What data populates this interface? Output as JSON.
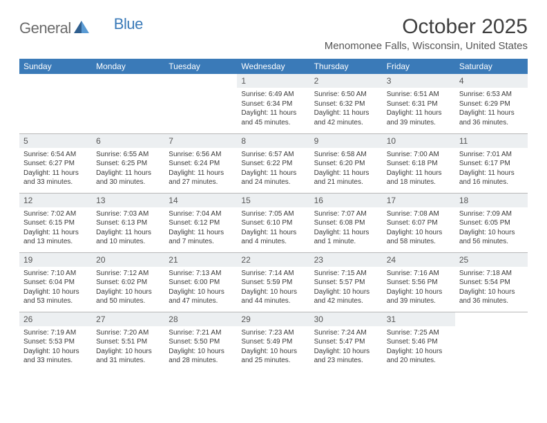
{
  "logo": {
    "general": "General",
    "blue": "Blue"
  },
  "title": "October 2025",
  "location": "Menomonee Falls, Wisconsin, United States",
  "colors": {
    "header_bg": "#3a7ab8",
    "header_text": "#ffffff",
    "daynum_bg": "#eceff1",
    "border": "#b8b8b8",
    "text": "#3a3a3a",
    "logo_gray": "#6b6b6b",
    "logo_blue": "#3a7ab8"
  },
  "day_headers": [
    "Sunday",
    "Monday",
    "Tuesday",
    "Wednesday",
    "Thursday",
    "Friday",
    "Saturday"
  ],
  "weeks": [
    [
      null,
      null,
      null,
      {
        "n": "1",
        "sr": "6:49 AM",
        "ss": "6:34 PM",
        "dl": "11 hours and 45 minutes."
      },
      {
        "n": "2",
        "sr": "6:50 AM",
        "ss": "6:32 PM",
        "dl": "11 hours and 42 minutes."
      },
      {
        "n": "3",
        "sr": "6:51 AM",
        "ss": "6:31 PM",
        "dl": "11 hours and 39 minutes."
      },
      {
        "n": "4",
        "sr": "6:53 AM",
        "ss": "6:29 PM",
        "dl": "11 hours and 36 minutes."
      }
    ],
    [
      {
        "n": "5",
        "sr": "6:54 AM",
        "ss": "6:27 PM",
        "dl": "11 hours and 33 minutes."
      },
      {
        "n": "6",
        "sr": "6:55 AM",
        "ss": "6:25 PM",
        "dl": "11 hours and 30 minutes."
      },
      {
        "n": "7",
        "sr": "6:56 AM",
        "ss": "6:24 PM",
        "dl": "11 hours and 27 minutes."
      },
      {
        "n": "8",
        "sr": "6:57 AM",
        "ss": "6:22 PM",
        "dl": "11 hours and 24 minutes."
      },
      {
        "n": "9",
        "sr": "6:58 AM",
        "ss": "6:20 PM",
        "dl": "11 hours and 21 minutes."
      },
      {
        "n": "10",
        "sr": "7:00 AM",
        "ss": "6:18 PM",
        "dl": "11 hours and 18 minutes."
      },
      {
        "n": "11",
        "sr": "7:01 AM",
        "ss": "6:17 PM",
        "dl": "11 hours and 16 minutes."
      }
    ],
    [
      {
        "n": "12",
        "sr": "7:02 AM",
        "ss": "6:15 PM",
        "dl": "11 hours and 13 minutes."
      },
      {
        "n": "13",
        "sr": "7:03 AM",
        "ss": "6:13 PM",
        "dl": "11 hours and 10 minutes."
      },
      {
        "n": "14",
        "sr": "7:04 AM",
        "ss": "6:12 PM",
        "dl": "11 hours and 7 minutes."
      },
      {
        "n": "15",
        "sr": "7:05 AM",
        "ss": "6:10 PM",
        "dl": "11 hours and 4 minutes."
      },
      {
        "n": "16",
        "sr": "7:07 AM",
        "ss": "6:08 PM",
        "dl": "11 hours and 1 minute."
      },
      {
        "n": "17",
        "sr": "7:08 AM",
        "ss": "6:07 PM",
        "dl": "10 hours and 58 minutes."
      },
      {
        "n": "18",
        "sr": "7:09 AM",
        "ss": "6:05 PM",
        "dl": "10 hours and 56 minutes."
      }
    ],
    [
      {
        "n": "19",
        "sr": "7:10 AM",
        "ss": "6:04 PM",
        "dl": "10 hours and 53 minutes."
      },
      {
        "n": "20",
        "sr": "7:12 AM",
        "ss": "6:02 PM",
        "dl": "10 hours and 50 minutes."
      },
      {
        "n": "21",
        "sr": "7:13 AM",
        "ss": "6:00 PM",
        "dl": "10 hours and 47 minutes."
      },
      {
        "n": "22",
        "sr": "7:14 AM",
        "ss": "5:59 PM",
        "dl": "10 hours and 44 minutes."
      },
      {
        "n": "23",
        "sr": "7:15 AM",
        "ss": "5:57 PM",
        "dl": "10 hours and 42 minutes."
      },
      {
        "n": "24",
        "sr": "7:16 AM",
        "ss": "5:56 PM",
        "dl": "10 hours and 39 minutes."
      },
      {
        "n": "25",
        "sr": "7:18 AM",
        "ss": "5:54 PM",
        "dl": "10 hours and 36 minutes."
      }
    ],
    [
      {
        "n": "26",
        "sr": "7:19 AM",
        "ss": "5:53 PM",
        "dl": "10 hours and 33 minutes."
      },
      {
        "n": "27",
        "sr": "7:20 AM",
        "ss": "5:51 PM",
        "dl": "10 hours and 31 minutes."
      },
      {
        "n": "28",
        "sr": "7:21 AM",
        "ss": "5:50 PM",
        "dl": "10 hours and 28 minutes."
      },
      {
        "n": "29",
        "sr": "7:23 AM",
        "ss": "5:49 PM",
        "dl": "10 hours and 25 minutes."
      },
      {
        "n": "30",
        "sr": "7:24 AM",
        "ss": "5:47 PM",
        "dl": "10 hours and 23 minutes."
      },
      {
        "n": "31",
        "sr": "7:25 AM",
        "ss": "5:46 PM",
        "dl": "10 hours and 20 minutes."
      },
      null
    ]
  ],
  "labels": {
    "sunrise": "Sunrise:",
    "sunset": "Sunset:",
    "daylight": "Daylight:"
  }
}
